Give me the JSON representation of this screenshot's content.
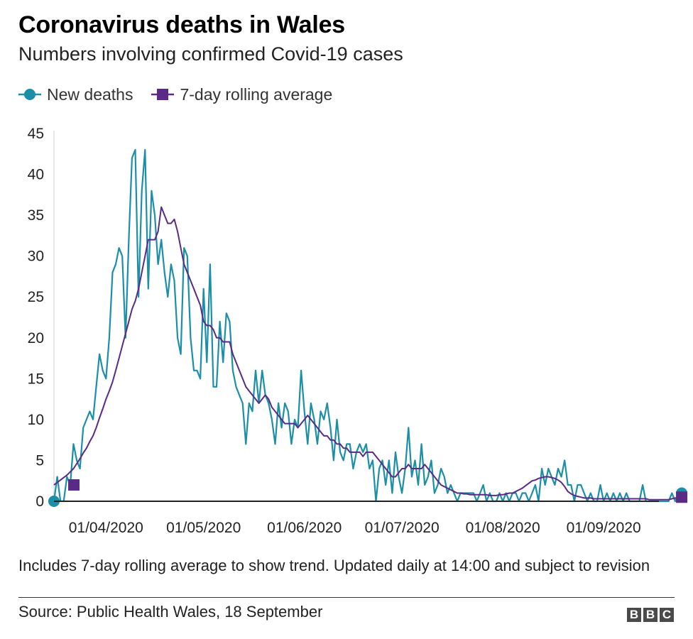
{
  "chart_data": {
    "type": "line",
    "title": "Coronavirus deaths in Wales",
    "subtitle": "Numbers involving confirmed Covid-19 cases",
    "xlabel": "",
    "ylabel": "",
    "ylim": [
      0,
      45
    ],
    "yticks": [
      "0",
      "5",
      "10",
      "15",
      "20",
      "25",
      "30",
      "35",
      "40",
      "45"
    ],
    "xticks": [
      {
        "date": "2020-04-01",
        "label": "01/04/2020"
      },
      {
        "date": "2020-05-01",
        "label": "01/05/2020"
      },
      {
        "date": "2020-06-01",
        "label": "01/06/2020"
      },
      {
        "date": "2020-07-01",
        "label": "01/07/2020"
      },
      {
        "date": "2020-08-01",
        "label": "01/08/2020"
      },
      {
        "date": "2020-09-01",
        "label": "01/09/2020"
      }
    ],
    "grid": false,
    "legend_position": "top-left",
    "x_start": "2020-03-16",
    "x_end": "2020-09-18",
    "series": [
      {
        "name": "New deaths",
        "color": "#1b8fa8",
        "marker": "circle",
        "values": [
          0,
          3,
          0,
          0,
          3,
          2,
          7,
          5,
          4,
          9,
          10,
          11,
          10,
          14,
          18,
          16,
          15,
          20,
          28,
          29,
          31,
          30,
          20,
          32,
          42,
          43,
          25,
          38,
          43,
          26,
          38,
          35,
          29,
          32,
          28,
          25,
          29,
          27,
          20,
          18,
          31,
          30,
          20,
          16,
          16,
          15,
          26,
          17,
          29,
          14,
          14,
          22,
          17,
          23,
          22,
          16,
          14,
          13,
          12,
          7,
          12,
          11,
          16,
          12,
          16,
          13,
          12,
          10,
          7,
          12,
          9,
          12,
          11,
          7,
          10,
          9,
          16,
          11,
          7,
          12,
          10,
          7,
          11,
          10,
          12,
          9,
          5,
          10,
          6,
          5,
          7,
          7,
          4,
          6,
          7,
          6,
          7,
          4,
          5,
          0,
          4,
          5,
          2,
          5,
          1,
          6,
          3,
          1,
          4,
          9,
          3,
          5,
          2,
          7,
          2,
          3,
          5,
          1,
          2,
          4,
          3,
          1,
          2,
          1,
          0,
          1,
          1,
          1,
          1,
          1,
          0,
          1,
          2,
          0,
          1,
          0,
          0,
          1,
          0,
          1,
          0,
          1,
          1,
          0,
          1,
          1,
          0,
          1,
          2,
          0,
          4,
          2,
          4,
          3,
          2,
          4,
          3,
          5,
          2,
          2,
          0,
          2,
          2,
          1,
          0,
          1,
          0,
          0,
          2,
          0,
          1,
          0,
          1,
          0,
          1,
          0,
          1,
          0,
          0,
          0,
          0,
          2,
          0,
          0,
          0,
          0,
          0,
          0,
          0,
          0,
          1,
          0,
          1,
          1
        ]
      },
      {
        "name": "7-day rolling average",
        "color": "#5a2a86",
        "marker": "square",
        "values": [
          2,
          2.3,
          2.6,
          2.9,
          3.2,
          3.6,
          4,
          4.6,
          5.2,
          5.9,
          6.5,
          7.3,
          8,
          9,
          10.2,
          11.3,
          12.5,
          13.5,
          14.6,
          16,
          17.5,
          19,
          20.5,
          22,
          23.5,
          24.5,
          26,
          28,
          30,
          32,
          32,
          32,
          33,
          36,
          35,
          34,
          34,
          34.5,
          33,
          31,
          29,
          28,
          27,
          26,
          25,
          24,
          22,
          21.5,
          21.5,
          21,
          20,
          20,
          19.5,
          19.5,
          19.5,
          18,
          17,
          16,
          15,
          14,
          13.5,
          13,
          12.5,
          12,
          12.5,
          13,
          12.5,
          11.5,
          11,
          10.5,
          10,
          9.5,
          9.5,
          9.5,
          9.5,
          9,
          9.5,
          10,
          10.5,
          10,
          9.5,
          9,
          8.5,
          8,
          8,
          7.5,
          7.5,
          7,
          7,
          6.5,
          6.5,
          6,
          6,
          6,
          6,
          5.5,
          6,
          6,
          6,
          5.5,
          5,
          4.5,
          4,
          3.5,
          3,
          3,
          3.5,
          4,
          4,
          4.5,
          4,
          4,
          4,
          4,
          4.5,
          4,
          3.5,
          3,
          2.5,
          2,
          1.8,
          1.6,
          1.4,
          1.2,
          1,
          1,
          0.9,
          0.9,
          0.8,
          0.8,
          0.8,
          0.8,
          0.8,
          0.8,
          0.7,
          0.7,
          0.7,
          0.8,
          0.8,
          0.9,
          1,
          1,
          1.2,
          1.4,
          1.6,
          1.9,
          2.2,
          2.5,
          2.6,
          2.8,
          2.9,
          3,
          3,
          2.9,
          2.8,
          2.6,
          2.3,
          1.8,
          1.2,
          0.9,
          0.7,
          0.6,
          0.5,
          0.4,
          0.4,
          0.4,
          0.3,
          0.3,
          0.3,
          0.3,
          0.3,
          0.3,
          0.3,
          0.3,
          0.3,
          0.3,
          0.3,
          0.3,
          0.3,
          0.3,
          0.3,
          0.3,
          0.3,
          0.2,
          0.2,
          0.2,
          0.2,
          0.2,
          0.2,
          0.2,
          0.3,
          0.4,
          0.4,
          0.5
        ]
      }
    ]
  },
  "footer": {
    "note": "Includes 7-day rolling average to show trend. Updated daily at 14:00 and subject to revision",
    "source": "Source: Public Health Wales, 18 September",
    "logo_letters": [
      "B",
      "B",
      "C"
    ]
  }
}
